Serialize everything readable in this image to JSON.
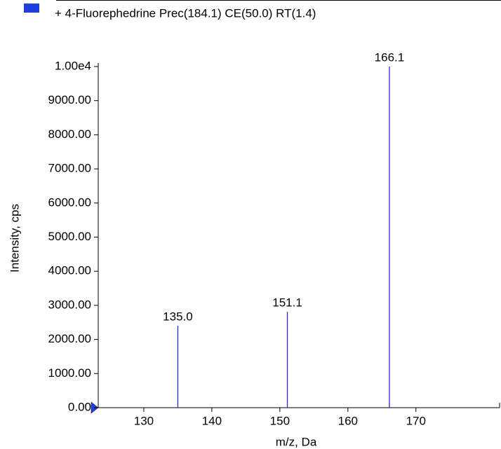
{
  "chart_data": {
    "type": "stem",
    "title": "+ 4-Fluorephedrine Prec(184.1) CE(50.0) RT(1.4)",
    "xlabel": "m/z, Da",
    "ylabel": "Intensity, cps",
    "color": "#2b2bd0",
    "legend_color": "#1f3fdd",
    "x": [
      135.0,
      151.1,
      166.1
    ],
    "values": [
      2400,
      2810,
      10000
    ],
    "peak_labels": [
      "135.0",
      "151.1",
      "166.1"
    ],
    "xlim": [
      123.3,
      182.3
    ],
    "xticks": [
      130,
      140,
      150,
      160,
      170
    ],
    "ylim": [
      0,
      10000
    ],
    "yticks": [
      {
        "value": 0,
        "label": "0.00"
      },
      {
        "value": 1000,
        "label": "1000.00"
      },
      {
        "value": 2000,
        "label": "2000.00"
      },
      {
        "value": 3000,
        "label": "3000.00"
      },
      {
        "value": 4000,
        "label": "4000.00"
      },
      {
        "value": 5000,
        "label": "5000.00"
      },
      {
        "value": 6000,
        "label": "6000.00"
      },
      {
        "value": 7000,
        "label": "7000.00"
      },
      {
        "value": 8000,
        "label": "8000.00"
      },
      {
        "value": 9000,
        "label": "9000.00"
      },
      {
        "value": 10000,
        "label": "1.00e4"
      }
    ]
  }
}
